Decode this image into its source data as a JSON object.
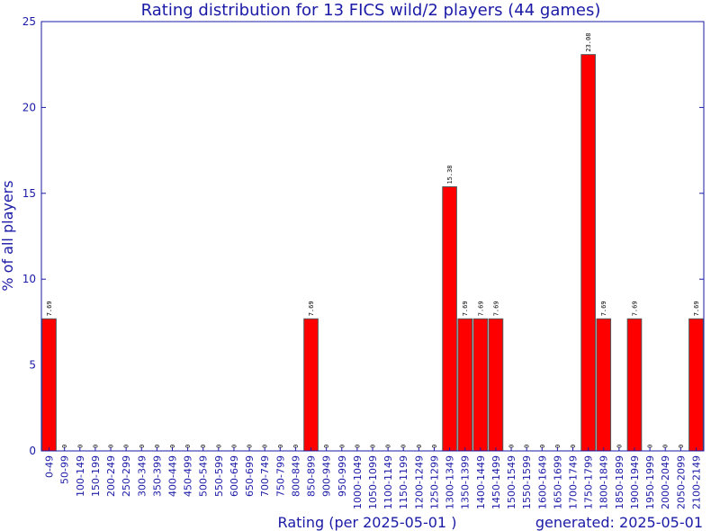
{
  "chart_data": {
    "type": "bar",
    "title": "Rating distribution for 13 FICS wild/2 players (44 games)",
    "xlabel": "Rating (per 2025-05-01 )",
    "ylabel": "% of all players",
    "footer": "generated: 2025-05-01",
    "ylim": [
      0,
      25
    ],
    "yticks": [
      0,
      5,
      10,
      15,
      20,
      25
    ],
    "grid": false,
    "categories": [
      "0-49",
      "50-99",
      "100-149",
      "150-199",
      "200-249",
      "250-299",
      "300-349",
      "350-399",
      "400-449",
      "450-499",
      "500-549",
      "550-599",
      "600-649",
      "650-699",
      "700-749",
      "750-799",
      "800-849",
      "850-899",
      "900-949",
      "950-999",
      "1000-1049",
      "1050-1099",
      "1100-1149",
      "1150-1199",
      "1200-1249",
      "1250-1299",
      "1300-1349",
      "1350-1399",
      "1400-1449",
      "1450-1499",
      "1500-1549",
      "1550-1599",
      "1600-1649",
      "1650-1699",
      "1700-1749",
      "1750-1799",
      "1800-1849",
      "1850-1899",
      "1900-1949",
      "1950-1999",
      "2000-2049",
      "2050-2099",
      "2100-2149"
    ],
    "values": [
      7.69,
      0,
      0,
      0,
      0,
      0,
      0,
      0,
      0,
      0,
      0,
      0,
      0,
      0,
      0,
      0,
      0,
      7.69,
      0,
      0,
      0,
      0,
      0,
      0,
      0,
      0,
      15.38,
      7.69,
      7.69,
      7.69,
      0,
      0,
      0,
      0,
      0,
      23.08,
      7.69,
      0,
      7.69,
      0,
      0,
      0,
      7.69
    ],
    "data_labels": [
      "7.69",
      "0",
      "0",
      "0",
      "0",
      "0",
      "0",
      "0",
      "0",
      "0",
      "0",
      "0",
      "0",
      "0",
      "0",
      "0",
      "0",
      "7.69",
      "0",
      "0",
      "0",
      "0",
      "0",
      "0",
      "0",
      "0",
      "15.38",
      "7.69",
      "7.69",
      "7.69",
      "0",
      "0",
      "0",
      "0",
      "0",
      "23.08",
      "7.69",
      "0",
      "7.69",
      "0",
      "0",
      "0",
      "7.69"
    ],
    "colors": {
      "bar": "#ff0000",
      "bar_edge": "#555555",
      "text": "#1a1aa6",
      "axis": "#1a1aa6"
    }
  }
}
